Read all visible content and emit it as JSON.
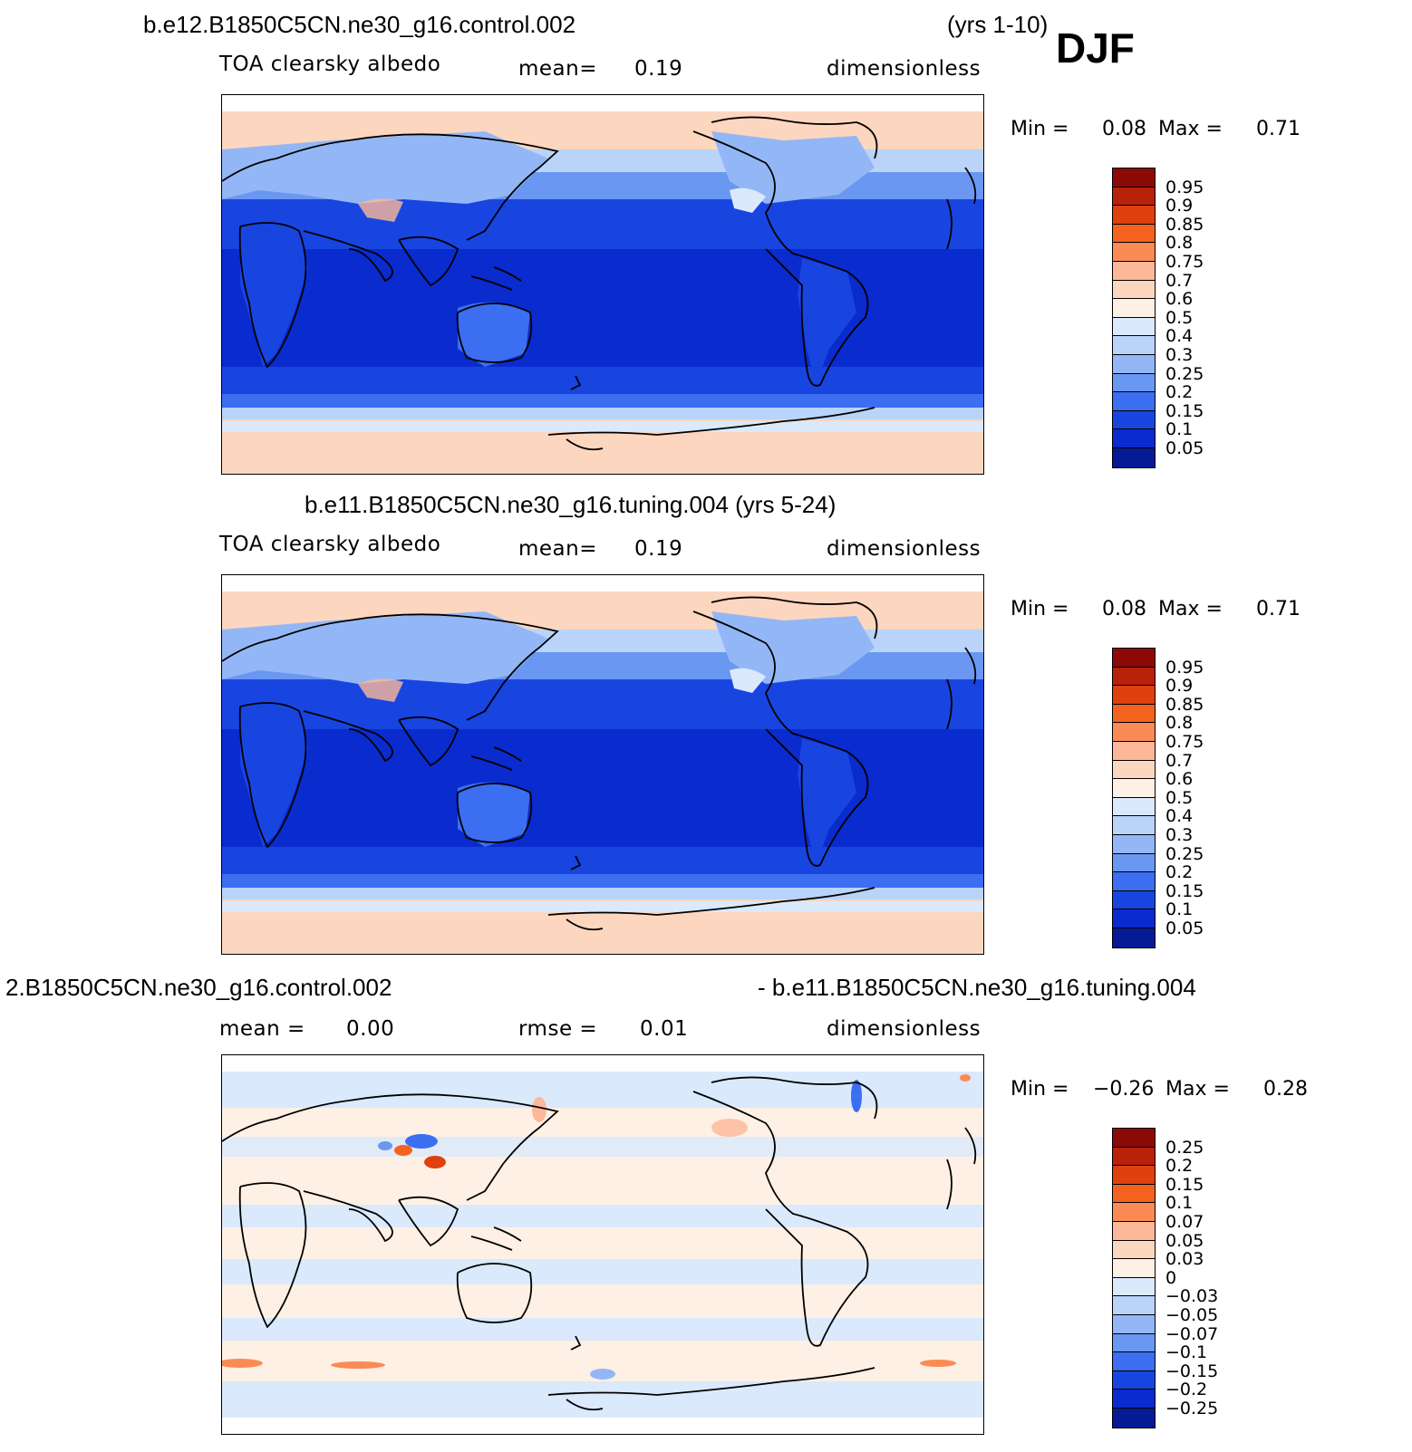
{
  "header": {
    "case1_title": "b.e12.B1850C5CN.ne30_g16.control.002",
    "case1_years": "(yrs 1-10)",
    "season": "DJF",
    "case2_title": "b.e11.B1850C5CN.ne30_g16.tuning.004 (yrs 5-24)",
    "diff_title_left": "2.B1850C5CN.ne30_g16.control.002",
    "diff_title_right": "- b.e11.B1850C5CN.ne30_g16.tuning.004"
  },
  "panels": [
    {
      "variable": "TOA clearsky albedo",
      "mean_label": "mean=",
      "mean_value": "0.19",
      "units": "dimensionless",
      "min_label": "Min =",
      "min_value": "0.08",
      "max_label": "Max =",
      "max_value": "0.71",
      "colorbar_labels": [
        "0.95",
        "0.9",
        "0.85",
        "0.8",
        "0.75",
        "0.7",
        "0.6",
        "0.5",
        "0.4",
        "0.3",
        "0.25",
        "0.2",
        "0.15",
        "0.1",
        "0.05"
      ]
    },
    {
      "variable": "TOA clearsky albedo",
      "mean_label": "mean=",
      "mean_value": "0.19",
      "units": "dimensionless",
      "min_label": "Min =",
      "min_value": "0.08",
      "max_label": "Max =",
      "max_value": "0.71",
      "colorbar_labels": [
        "0.95",
        "0.9",
        "0.85",
        "0.8",
        "0.75",
        "0.7",
        "0.6",
        "0.5",
        "0.4",
        "0.3",
        "0.25",
        "0.2",
        "0.15",
        "0.1",
        "0.05"
      ]
    },
    {
      "mean_label": "mean =",
      "mean_value": "0.00",
      "rmse_label": "rmse =",
      "rmse_value": "0.01",
      "units": "dimensionless",
      "min_label": "Min =",
      "min_value": "−0.26",
      "max_label": "Max =",
      "max_value": "0.28",
      "colorbar_labels": [
        "0.25",
        "0.2",
        "0.15",
        "0.1",
        "0.07",
        "0.05",
        "0.03",
        "0",
        "−0.03",
        "−0.05",
        "−0.07",
        "−0.1",
        "−0.15",
        "−0.2",
        "−0.25"
      ]
    }
  ],
  "colors": {
    "colorbar": [
      "#8b0a07",
      "#b8210a",
      "#e0400e",
      "#f4621f",
      "#fb8b55",
      "#fcb898",
      "#fdd6c0",
      "#fef0e4",
      "#dae9fb",
      "#b9d3f9",
      "#93b7f6",
      "#6a97f1",
      "#3b6ef0",
      "#1845e0",
      "#0a2bcd",
      "#061a96"
    ]
  }
}
